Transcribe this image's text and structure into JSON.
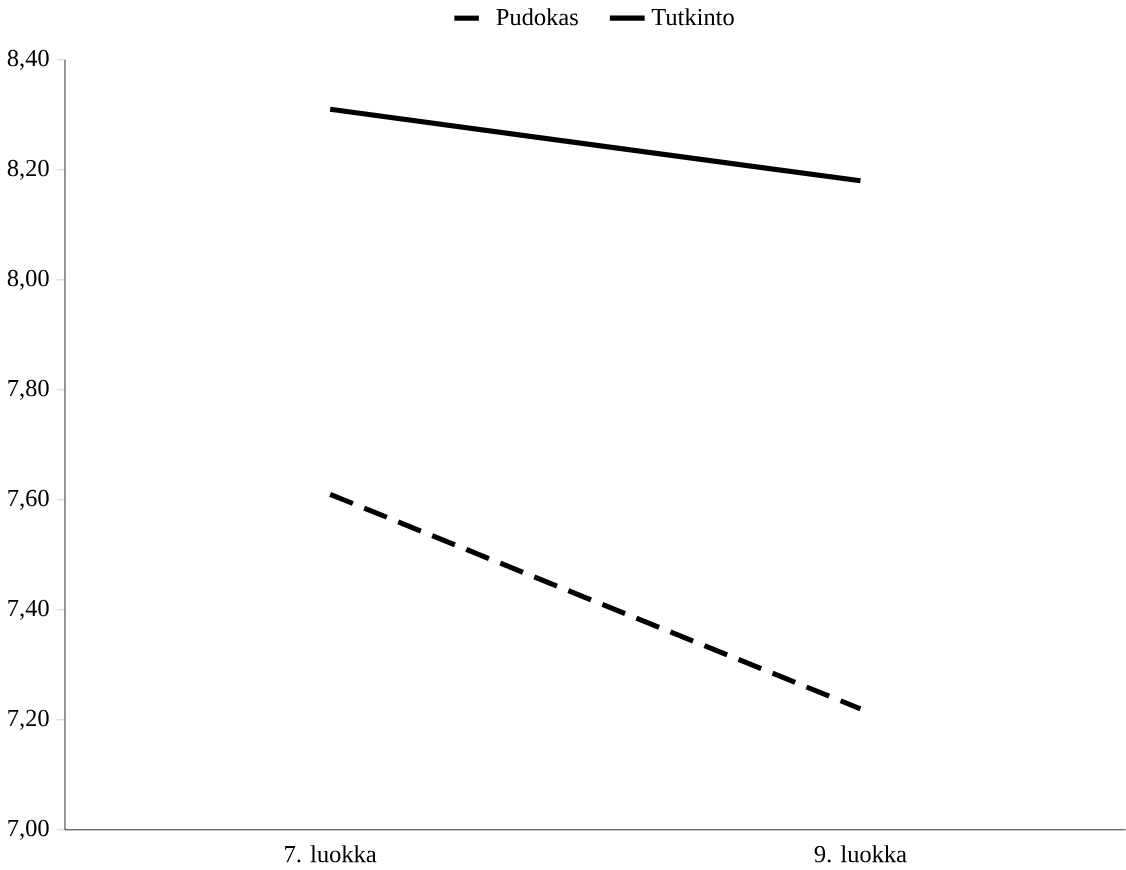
{
  "chart_data": {
    "type": "line",
    "categories": [
      "7. luokka",
      "9. luokka"
    ],
    "series": [
      {
        "name": "Pudokas",
        "color": "#000000",
        "line_style": "dashed",
        "values": [
          7.61,
          7.22
        ]
      },
      {
        "name": "Tutkinto",
        "color": "#000000",
        "line_style": "solid",
        "values": [
          8.31,
          8.18
        ]
      }
    ],
    "ylim": [
      7.0,
      8.4
    ],
    "yticks": [
      {
        "value": 7.0,
        "label": "7,00"
      },
      {
        "value": 7.2,
        "label": "7,20"
      },
      {
        "value": 7.4,
        "label": "7,40"
      },
      {
        "value": 7.6,
        "label": "7,60"
      },
      {
        "value": 7.8,
        "label": "7,80"
      },
      {
        "value": 8.0,
        "label": "8,00"
      },
      {
        "value": 8.2,
        "label": "8,20"
      },
      {
        "value": 8.4,
        "label": "8,40"
      }
    ],
    "grid": false,
    "legend": "top",
    "marker": "none"
  }
}
